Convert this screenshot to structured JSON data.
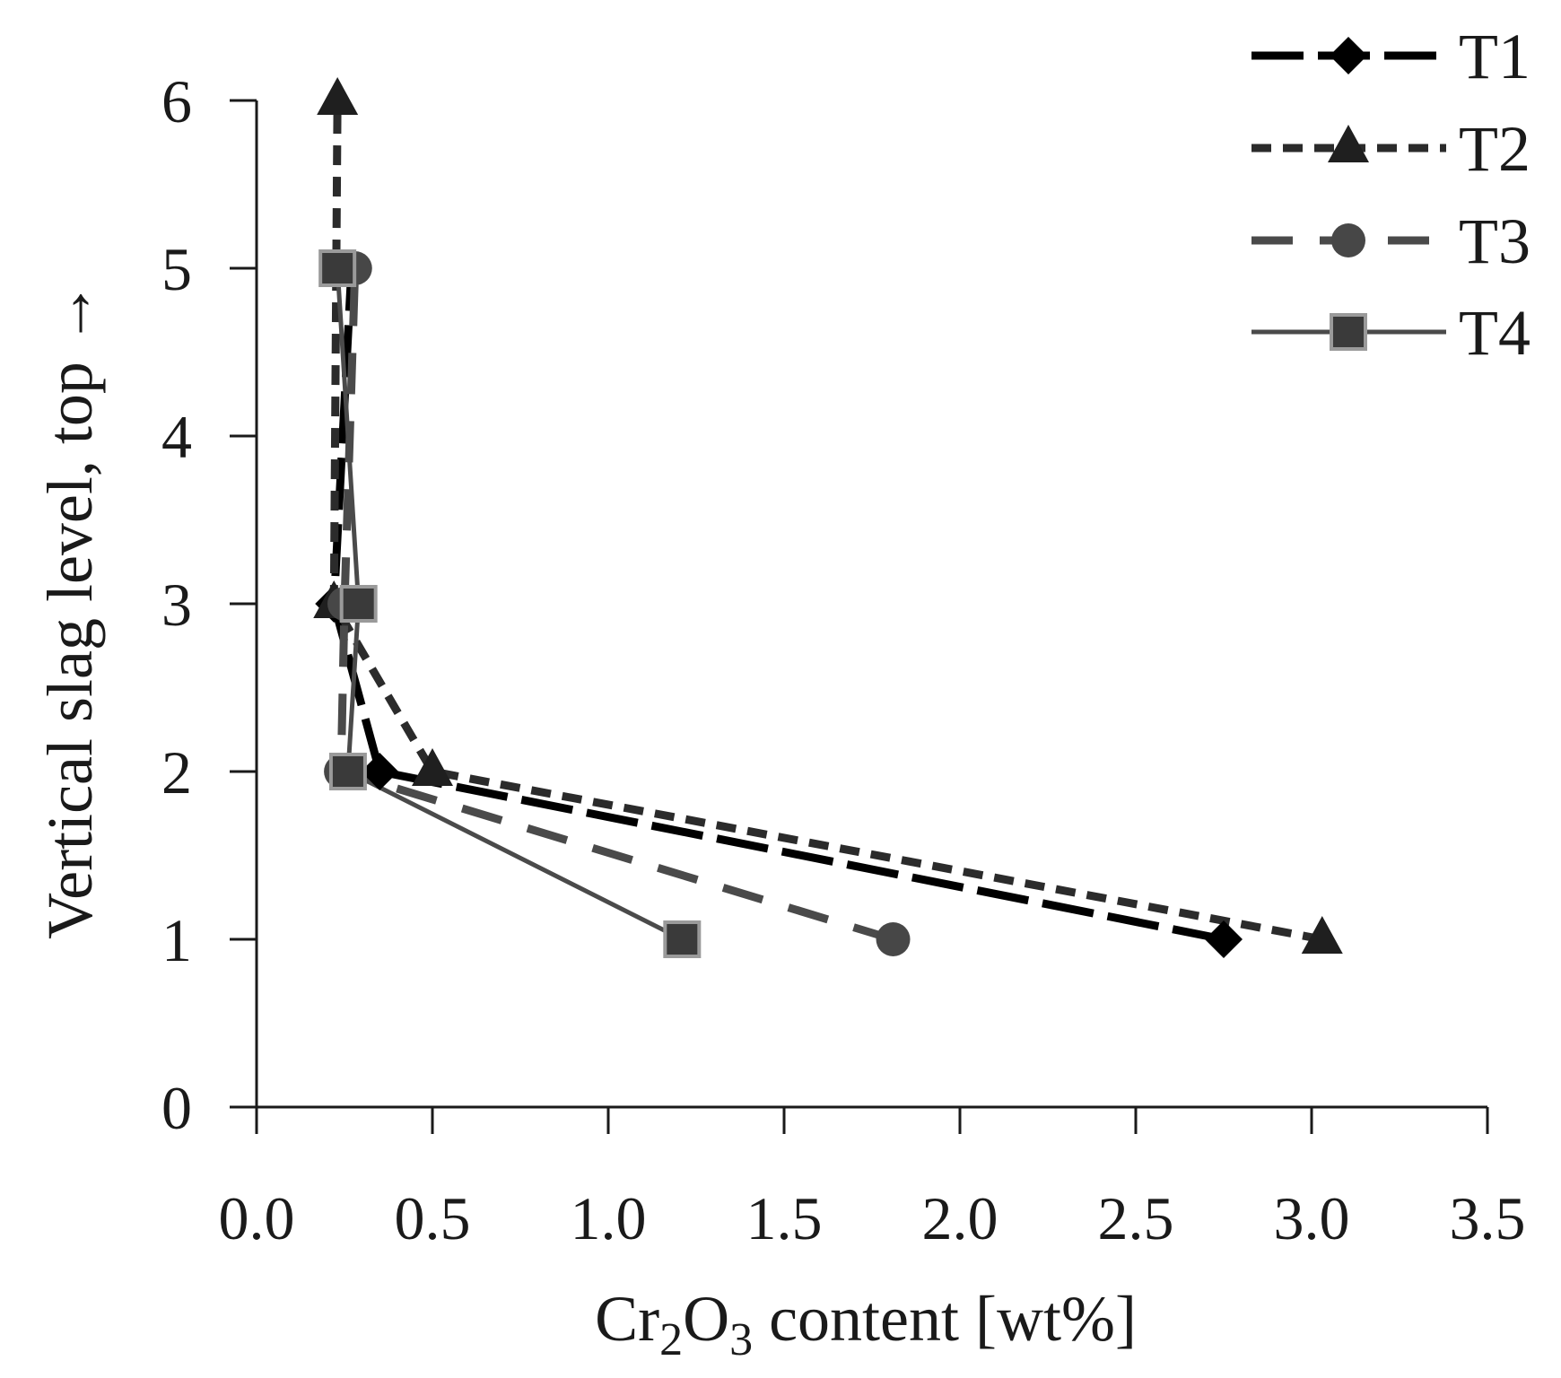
{
  "chart_data": {
    "type": "line",
    "xlabel_parts": [
      "Cr",
      "2",
      "O",
      "3",
      " content [wt%]"
    ],
    "ylabel": "Vertical slag level, top →",
    "xlim": [
      0,
      3.5
    ],
    "ylim": [
      0,
      6
    ],
    "xticks": [
      "0.0",
      "0.5",
      "1.0",
      "1.5",
      "2.0",
      "2.5",
      "3.0",
      "3.5"
    ],
    "yticks": [
      "0",
      "1",
      "2",
      "3",
      "4",
      "5",
      "6"
    ],
    "legend_position": "top-right",
    "series": [
      {
        "name": "T1",
        "marker": "diamond",
        "dash": "long-dash",
        "color": "#000000",
        "points": [
          [
            2.75,
            1
          ],
          [
            0.35,
            2
          ],
          [
            0.22,
            3
          ],
          [
            0.27,
            5
          ]
        ]
      },
      {
        "name": "T2",
        "marker": "triangle",
        "dash": "short-dash",
        "color": "#2b2b2b",
        "points": [
          [
            3.03,
            1
          ],
          [
            0.5,
            2
          ],
          [
            0.22,
            3
          ],
          [
            0.23,
            6
          ]
        ]
      },
      {
        "name": "T3",
        "marker": "circle",
        "dash": "gray-dash",
        "color": "#4a4a4a",
        "points": [
          [
            1.81,
            1
          ],
          [
            0.24,
            2
          ],
          [
            0.25,
            3
          ],
          [
            0.28,
            5
          ]
        ]
      },
      {
        "name": "T4",
        "marker": "square",
        "dash": "solid",
        "color": "#4a4a4a",
        "points": [
          [
            1.21,
            1
          ],
          [
            0.26,
            2
          ],
          [
            0.29,
            3
          ],
          [
            0.23,
            5
          ]
        ]
      }
    ]
  }
}
